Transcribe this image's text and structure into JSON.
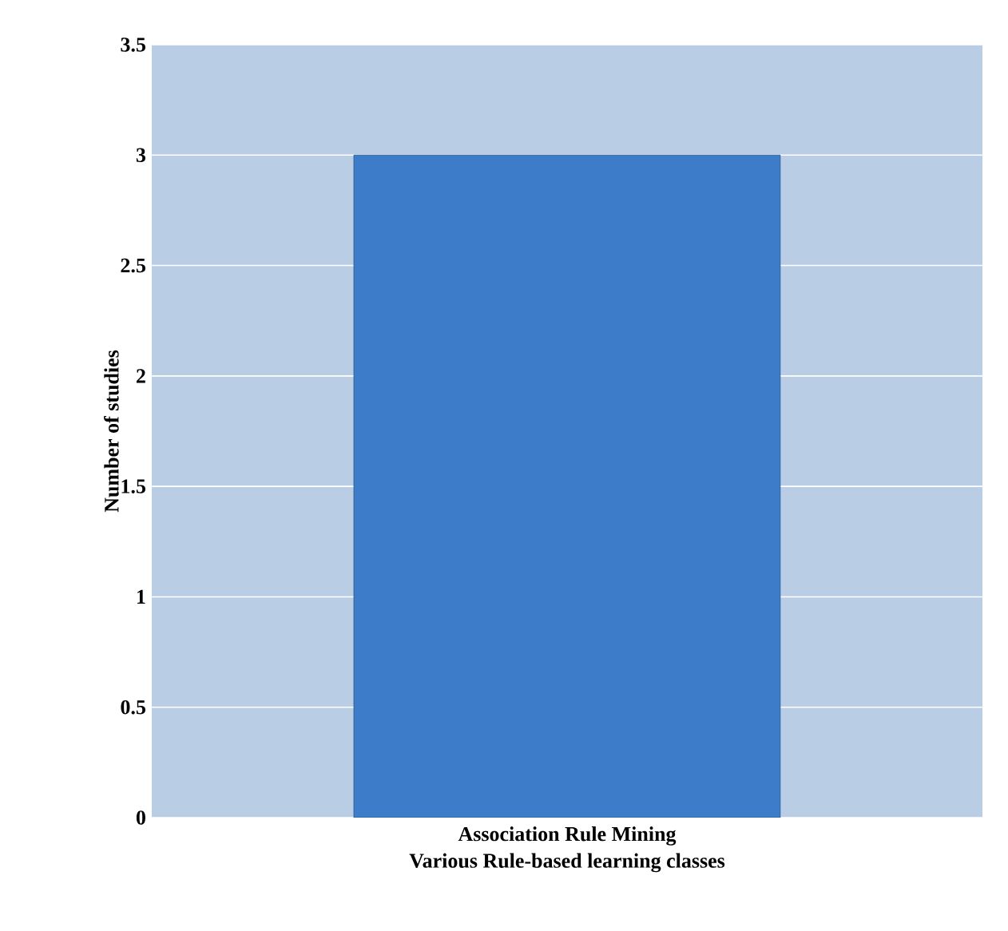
{
  "chart_data": {
    "type": "bar",
    "xlabel": "Various Rule-based learning classes",
    "ylabel": "Number of studies",
    "categories": [
      "Association Rule Mining"
    ],
    "values": [
      3
    ],
    "color": "#3d7cc9",
    "ylim": [
      0,
      3.5
    ],
    "yticks": [
      0,
      0.5,
      1,
      1.5,
      2,
      2.5,
      3,
      3.5
    ],
    "grid": "y"
  }
}
